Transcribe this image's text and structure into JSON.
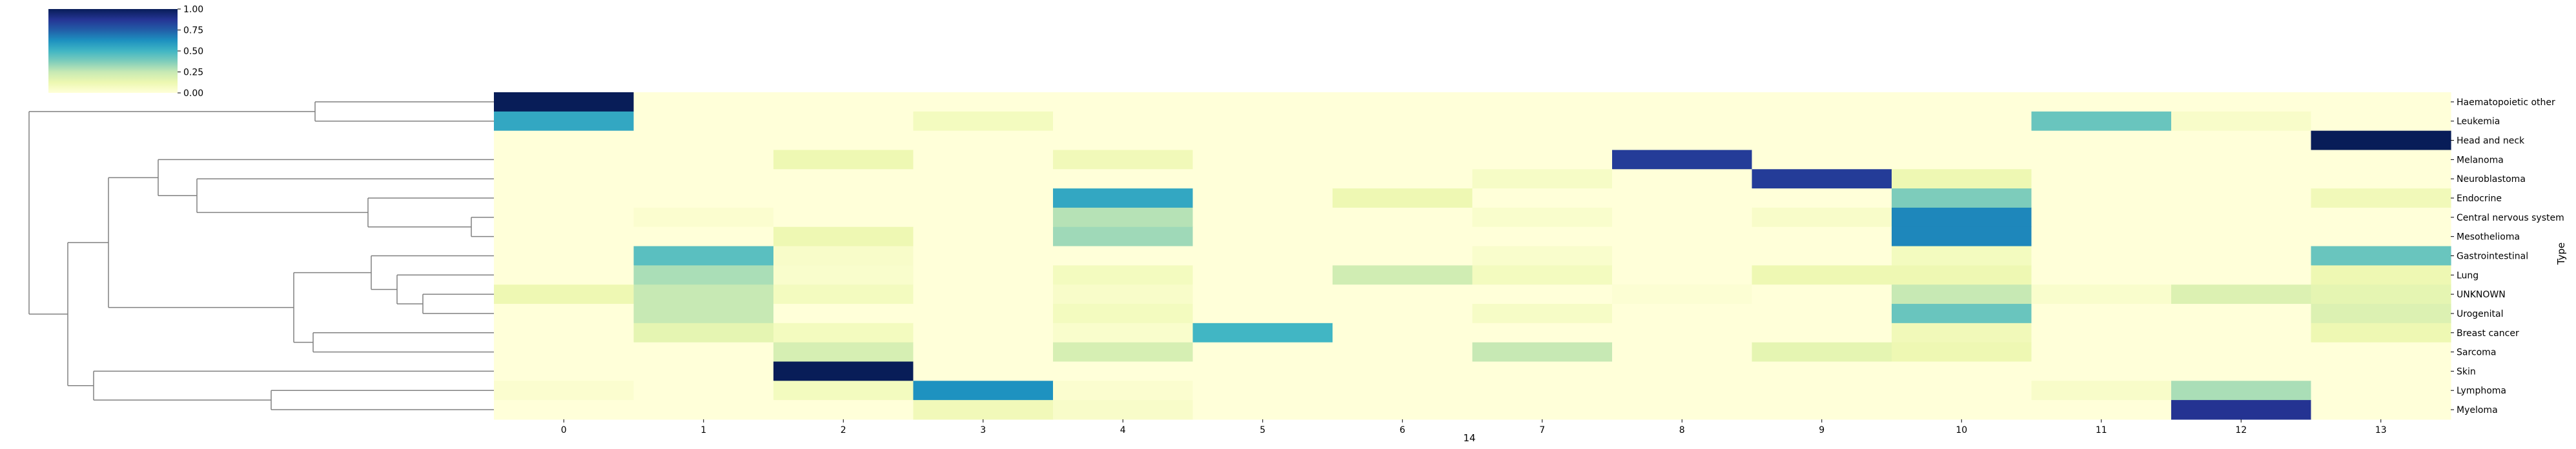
{
  "chart_data": {
    "type": "heatmap",
    "title": "",
    "xlabel": "14",
    "ylabel": "Type",
    "colormap": "YlGnBu",
    "colorbar": {
      "vmin": 0.0,
      "vmax": 1.0,
      "ticks": [
        "0.00",
        "0.25",
        "0.50",
        "0.75",
        "1.00"
      ]
    },
    "dendrogram": "rows",
    "x_categories": [
      "0",
      "1",
      "2",
      "3",
      "4",
      "5",
      "6",
      "7",
      "8",
      "9",
      "10",
      "11",
      "12",
      "13"
    ],
    "y_categories": [
      "Haematopoietic other",
      "Leukemia",
      "Head and neck",
      "Melanoma",
      "Neuroblastoma",
      "Endocrine",
      "Central nervous system",
      "Mesothelioma",
      "Gastrointestinal",
      "Lung",
      "UNKNOWN",
      "Urogenital",
      "Breast cancer",
      "Sarcoma",
      "Skin",
      "Lymphoma",
      "Myeloma"
    ],
    "values": [
      [
        1.0,
        0.0,
        0.0,
        0.0,
        0.0,
        0.0,
        0.0,
        0.0,
        0.0,
        0.0,
        0.0,
        0.0,
        0.0,
        0.0
      ],
      [
        0.55,
        0.0,
        0.0,
        0.08,
        0.0,
        0.0,
        0.0,
        0.0,
        0.0,
        0.0,
        0.0,
        0.42,
        0.05,
        0.0
      ],
      [
        0.0,
        0.0,
        0.0,
        0.0,
        0.0,
        0.0,
        0.0,
        0.0,
        0.0,
        0.0,
        0.0,
        0.0,
        0.0,
        1.0
      ],
      [
        0.0,
        0.0,
        0.12,
        0.0,
        0.1,
        0.0,
        0.0,
        0.0,
        0.85,
        0.0,
        0.0,
        0.0,
        0.0,
        0.0
      ],
      [
        0.0,
        0.0,
        0.0,
        0.0,
        0.0,
        0.0,
        0.0,
        0.06,
        0.0,
        0.85,
        0.12,
        0.0,
        0.0,
        0.0
      ],
      [
        0.0,
        0.0,
        0.0,
        0.0,
        0.55,
        0.0,
        0.12,
        0.0,
        0.0,
        0.0,
        0.38,
        0.0,
        0.0,
        0.1
      ],
      [
        0.0,
        0.03,
        0.0,
        0.0,
        0.28,
        0.0,
        0.0,
        0.04,
        0.0,
        0.05,
        0.65,
        0.0,
        0.0,
        0.0
      ],
      [
        0.0,
        0.0,
        0.12,
        0.0,
        0.32,
        0.0,
        0.0,
        0.0,
        0.0,
        0.0,
        0.65,
        0.0,
        0.0,
        0.0
      ],
      [
        0.0,
        0.45,
        0.05,
        0.0,
        0.0,
        0.0,
        0.0,
        0.04,
        0.0,
        0.0,
        0.08,
        0.0,
        0.0,
        0.42
      ],
      [
        0.0,
        0.3,
        0.04,
        0.0,
        0.08,
        0.0,
        0.22,
        0.08,
        0.0,
        0.12,
        0.12,
        0.0,
        0.0,
        0.12
      ],
      [
        0.12,
        0.25,
        0.08,
        0.0,
        0.05,
        0.0,
        0.0,
        0.0,
        0.02,
        0.0,
        0.25,
        0.04,
        0.18,
        0.15
      ],
      [
        0.0,
        0.25,
        0.0,
        0.0,
        0.08,
        0.0,
        0.0,
        0.06,
        0.0,
        0.0,
        0.42,
        0.0,
        0.0,
        0.18
      ],
      [
        0.0,
        0.15,
        0.08,
        0.0,
        0.04,
        0.5,
        0.0,
        0.0,
        0.0,
        0.0,
        0.1,
        0.0,
        0.0,
        0.12
      ],
      [
        0.0,
        0.0,
        0.2,
        0.0,
        0.2,
        0.0,
        0.0,
        0.25,
        0.0,
        0.15,
        0.12,
        0.0,
        0.0,
        0.0
      ],
      [
        0.0,
        0.0,
        1.0,
        0.0,
        0.0,
        0.0,
        0.0,
        0.0,
        0.0,
        0.0,
        0.0,
        0.0,
        0.0,
        0.0
      ],
      [
        0.03,
        0.0,
        0.08,
        0.62,
        0.03,
        0.0,
        0.0,
        0.0,
        0.0,
        0.0,
        0.0,
        0.05,
        0.3,
        0.0
      ],
      [
        0.0,
        0.0,
        0.0,
        0.1,
        0.05,
        0.0,
        0.0,
        0.0,
        0.0,
        0.0,
        0.0,
        0.0,
        0.88,
        0.0
      ]
    ]
  }
}
